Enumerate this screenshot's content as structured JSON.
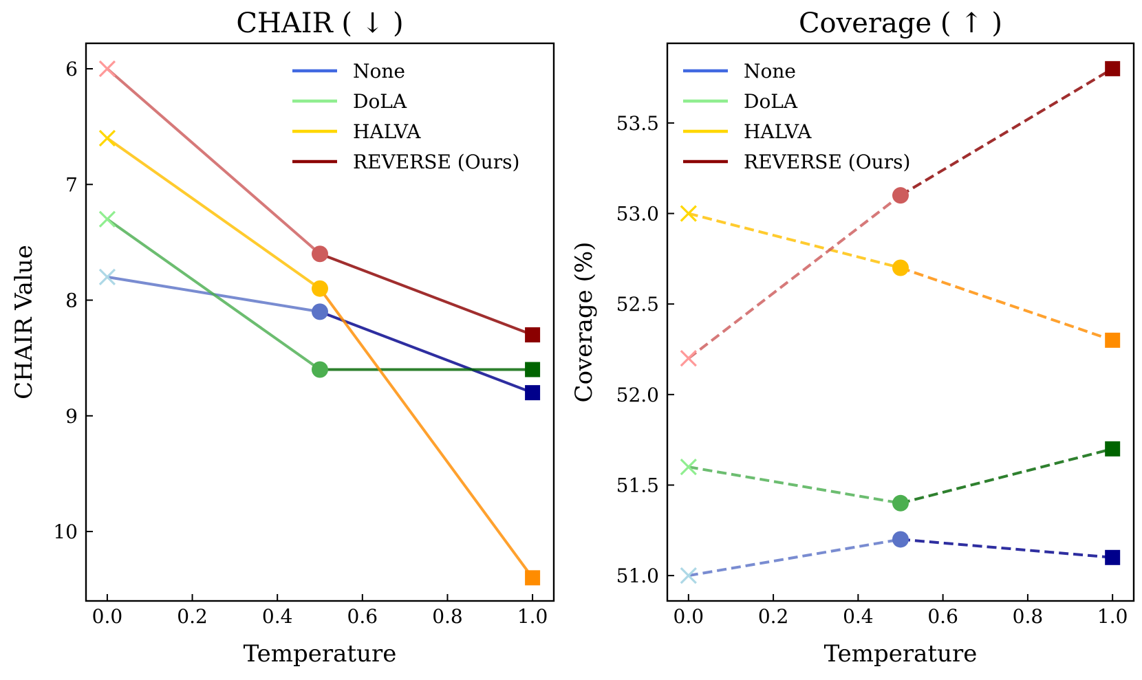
{
  "chart_data": [
    {
      "type": "line",
      "title": "CHAIR ( ↓ )",
      "xlabel": "Temperature",
      "ylabel": "CHAIR Value",
      "x": [
        0.0,
        0.5,
        1.0
      ],
      "xlim": [
        -0.05,
        1.05
      ],
      "ylim": [
        10.6,
        5.78
      ],
      "y_inverted": true,
      "xticks": [
        "0.0",
        "0.2",
        "0.4",
        "0.6",
        "0.8",
        "1.0"
      ],
      "xtick_values": [
        0.0,
        0.2,
        0.4,
        0.6,
        0.8,
        1.0
      ],
      "yticks": [
        "6",
        "7",
        "8",
        "9",
        "10"
      ],
      "ytick_values": [
        6,
        7,
        8,
        9,
        10
      ],
      "line_style": "solid",
      "legend_position": "top-right",
      "series": [
        {
          "name": "None",
          "values": [
            7.8,
            8.1,
            8.8
          ],
          "legend_color": "#4169e1",
          "colors": [
            "#add8e6",
            "#5b73c7",
            "#00008b"
          ]
        },
        {
          "name": "DoLA",
          "values": [
            7.3,
            8.6,
            8.6
          ],
          "legend_color": "#90ee90",
          "colors": [
            "#90ee90",
            "#4caf50",
            "#006400"
          ]
        },
        {
          "name": "HALVA",
          "values": [
            6.6,
            7.9,
            10.4
          ],
          "legend_color": "#ffd700",
          "colors": [
            "#ffd700",
            "#ffbf00",
            "#ff8c00"
          ]
        },
        {
          "name": "REVERSE (Ours)",
          "values": [
            6.0,
            7.6,
            8.3
          ],
          "legend_color": "#8b0000",
          "colors": [
            "#ff9999",
            "#cd5c5c",
            "#8b0000"
          ]
        }
      ]
    },
    {
      "type": "line",
      "title": "Coverage ( ↑ )",
      "xlabel": "Temperature",
      "ylabel": "Coverage (%)",
      "x": [
        0.0,
        0.5,
        1.0
      ],
      "xlim": [
        -0.05,
        1.05
      ],
      "ylim": [
        50.86,
        53.94
      ],
      "y_inverted": false,
      "xticks": [
        "0.0",
        "0.2",
        "0.4",
        "0.6",
        "0.8",
        "1.0"
      ],
      "xtick_values": [
        0.0,
        0.2,
        0.4,
        0.6,
        0.8,
        1.0
      ],
      "yticks": [
        "51.0",
        "51.5",
        "52.0",
        "52.5",
        "53.0",
        "53.5"
      ],
      "ytick_values": [
        51.0,
        51.5,
        52.0,
        52.5,
        53.0,
        53.5
      ],
      "line_style": "dashed",
      "legend_position": "top-left",
      "series": [
        {
          "name": "None",
          "values": [
            51.0,
            51.2,
            51.1
          ],
          "legend_color": "#4169e1",
          "colors": [
            "#add8e6",
            "#5b73c7",
            "#00008b"
          ]
        },
        {
          "name": "DoLA",
          "values": [
            51.6,
            51.4,
            51.7
          ],
          "legend_color": "#90ee90",
          "colors": [
            "#90ee90",
            "#4caf50",
            "#006400"
          ]
        },
        {
          "name": "HALVA",
          "values": [
            53.0,
            52.7,
            52.3
          ],
          "legend_color": "#ffd700",
          "colors": [
            "#ffd700",
            "#ffbf00",
            "#ff8c00"
          ]
        },
        {
          "name": "REVERSE (Ours)",
          "values": [
            52.2,
            53.1,
            53.8
          ],
          "legend_color": "#8b0000",
          "colors": [
            "#ff9999",
            "#cd5c5c",
            "#8b0000"
          ]
        }
      ]
    }
  ]
}
